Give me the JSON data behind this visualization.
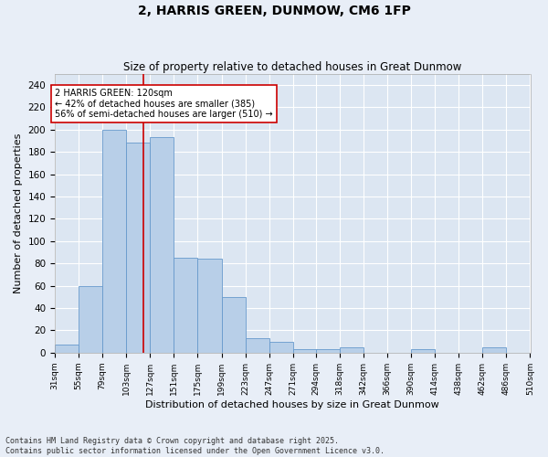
{
  "title": "2, HARRIS GREEN, DUNMOW, CM6 1FP",
  "subtitle": "Size of property relative to detached houses in Great Dunmow",
  "xlabel": "Distribution of detached houses by size in Great Dunmow",
  "ylabel": "Number of detached properties",
  "bins": [
    31,
    55,
    79,
    103,
    127,
    151,
    175,
    199,
    223,
    247,
    271,
    294,
    318,
    342,
    366,
    390,
    414,
    438,
    462,
    486,
    510
  ],
  "values": [
    7,
    60,
    200,
    188,
    193,
    85,
    84,
    50,
    13,
    10,
    3,
    3,
    5,
    0,
    0,
    3,
    0,
    0,
    5,
    0
  ],
  "bar_color": "#b8cfe8",
  "bar_edge_color": "#6699cc",
  "red_line_x": 120,
  "annotation_text": "2 HARRIS GREEN: 120sqm\n← 42% of detached houses are smaller (385)\n56% of semi-detached houses are larger (510) →",
  "annotation_box_color": "#ffffff",
  "annotation_box_edge_color": "#cc0000",
  "annotation_text_color": "#000000",
  "footer_line1": "Contains HM Land Registry data © Crown copyright and database right 2025.",
  "footer_line2": "Contains public sector information licensed under the Open Government Licence v3.0.",
  "background_color": "#e8eef7",
  "plot_background_color": "#dce6f2",
  "grid_color": "#ffffff",
  "ylim": [
    0,
    250
  ],
  "yticks": [
    0,
    20,
    40,
    60,
    80,
    100,
    120,
    140,
    160,
    180,
    200,
    220,
    240
  ]
}
